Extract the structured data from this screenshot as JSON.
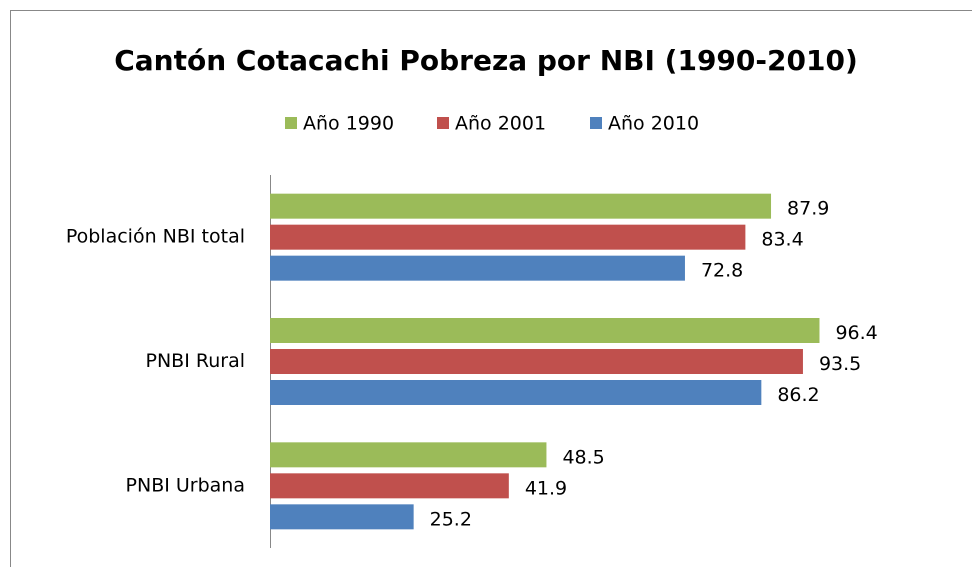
{
  "chart_data": {
    "type": "bar",
    "orientation": "horizontal",
    "title": "Cantón Cotacachi Pobreza por NBI (1990-2010)",
    "categories": [
      "Población NBI total",
      "PNBI Rural",
      "PNBI Urbana"
    ],
    "series": [
      {
        "name": "Año 1990",
        "color": "#9bbb59",
        "values": [
          87.9,
          96.4,
          48.5
        ]
      },
      {
        "name": "Año 2001",
        "color": "#c0504d",
        "values": [
          83.4,
          93.5,
          41.9
        ]
      },
      {
        "name": "Año 2010",
        "color": "#4f81bd",
        "values": [
          72.8,
          86.2,
          25.2
        ]
      }
    ],
    "xlim": [
      0,
      100
    ],
    "legend": "top"
  }
}
